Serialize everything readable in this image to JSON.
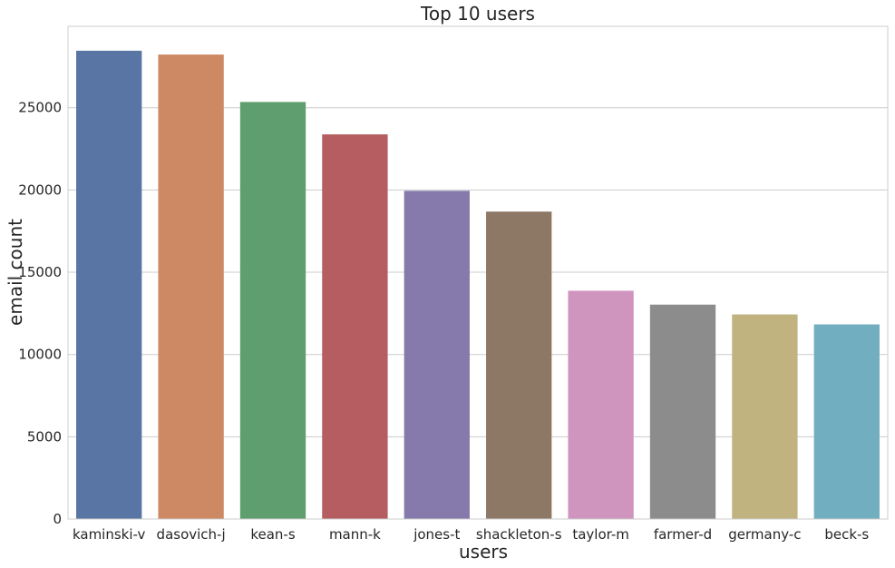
{
  "chart_data": {
    "type": "bar",
    "title": "Top 10 users",
    "xlabel": "users",
    "ylabel": "email count",
    "categories": [
      "kaminski-v",
      "dasovich-j",
      "kean-s",
      "mann-k",
      "jones-t",
      "shackleton-s",
      "taylor-m",
      "farmer-d",
      "germany-c",
      "beck-s"
    ],
    "values": [
      28465,
      28234,
      25351,
      23381,
      19950,
      18687,
      13875,
      13032,
      12436,
      11830
    ],
    "colors": [
      "#5875a4",
      "#cc8963",
      "#5f9e6e",
      "#b55d60",
      "#857aab",
      "#8d7866",
      "#d095bf",
      "#8c8c8c",
      "#c1b37f",
      "#71aec0"
    ],
    "ylim": [
      0,
      29950
    ],
    "yticks": [
      0,
      5000,
      10000,
      15000,
      20000,
      25000
    ],
    "grid": "y",
    "legend": "none"
  }
}
